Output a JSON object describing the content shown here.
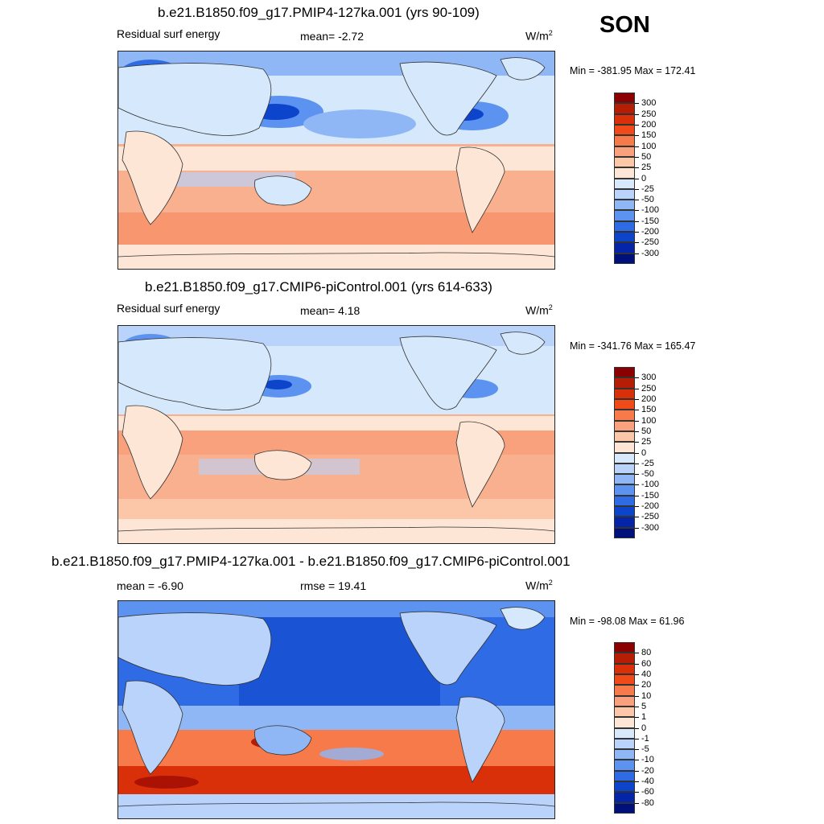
{
  "season": "SON",
  "panels": [
    {
      "title": "b.e21.B1850.f09_g17.PMIP4-127ka.001 (yrs 90-109)",
      "left_label": "Residual surf energy",
      "stat_label": "mean=  -2.72",
      "units": "W/m",
      "units_sup": "2",
      "minmax": "Min = -381.95 Max = 172.41",
      "colorbar_labels": [
        "300",
        "250",
        "200",
        "150",
        "100",
        "50",
        "25",
        "0",
        "-25",
        "-50",
        "-100",
        "-150",
        "-200",
        "-250",
        "-300"
      ]
    },
    {
      "title": "b.e21.B1850.f09_g17.CMIP6-piControl.001 (yrs 614-633)",
      "left_label": "Residual surf energy",
      "stat_label": "mean=   4.18",
      "units": "W/m",
      "units_sup": "2",
      "minmax": "Min = -341.76 Max = 165.47",
      "colorbar_labels": [
        "300",
        "250",
        "200",
        "150",
        "100",
        "50",
        "25",
        "0",
        "-25",
        "-50",
        "-100",
        "-150",
        "-200",
        "-250",
        "-300"
      ]
    },
    {
      "title": "b.e21.B1850.f09_g17.PMIP4-127ka.001 - b.e21.B1850.f09_g17.CMIP6-piControl.001",
      "left_label": "mean =  -6.90",
      "stat_label": "rmse =  19.41",
      "units": "W/m",
      "units_sup": "2",
      "minmax": "Min = -98.08 Max =  61.96",
      "colorbar_labels": [
        "80",
        "60",
        "40",
        "20",
        "10",
        "5",
        "1",
        "0",
        "-1",
        "-5",
        "-10",
        "-20",
        "-40",
        "-60",
        "-80"
      ]
    }
  ],
  "colors": {
    "colorbar": [
      "#8b0000",
      "#b51d05",
      "#d9300a",
      "#f04a18",
      "#f67a4a",
      "#f9a07c",
      "#fcc6a9",
      "#fde6d6",
      "#d8e9fb",
      "#b9d3fa",
      "#8fb7f6",
      "#5c92f0",
      "#2f6be4",
      "#0d44cc",
      "#0425a8",
      "#00107a"
    ],
    "land_light": "#d6e8fb",
    "ocean_warm": "#f9a884",
    "ocean_deep_blue": "#2f6be4",
    "antarctica": "#fde6d6"
  }
}
